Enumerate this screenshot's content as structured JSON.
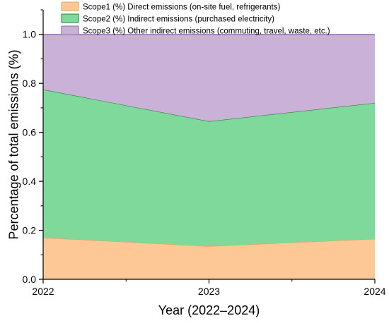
{
  "chart_data": {
    "type": "area",
    "stacked": true,
    "x": [
      2022,
      2023,
      2024
    ],
    "xlabel": "Year (2022–2024)",
    "ylabel": "Percentage of total emissions (%)",
    "xlim": [
      2022,
      2024
    ],
    "ylim": [
      0,
      1.1
    ],
    "x_ticks": [
      "2022",
      "2023",
      "2024"
    ],
    "y_ticks": [
      "0.0",
      "0.2",
      "0.4",
      "0.6",
      "0.8",
      "1.0"
    ],
    "grid": false,
    "legend_position": "top",
    "series": [
      {
        "name": "Scope1 (%) Direct emissions (on-site fuel, refrigerants)",
        "values": [
          0.17,
          0.135,
          0.165
        ],
        "fill": "#fdc896",
        "stroke": "#e8a15c"
      },
      {
        "name": "Scope2 (%) Indirect emissions (purchased electricity)",
        "values": [
          0.605,
          0.51,
          0.555
        ],
        "fill": "#7fd99a",
        "stroke": "#2e7d3f"
      },
      {
        "name": "Scope3 (%) Other indirect emissions (commuting, travel, waste, etc.)",
        "values": [
          0.225,
          0.355,
          0.28
        ],
        "fill": "#c9b1d8",
        "stroke": "#8a6aa3"
      }
    ]
  }
}
